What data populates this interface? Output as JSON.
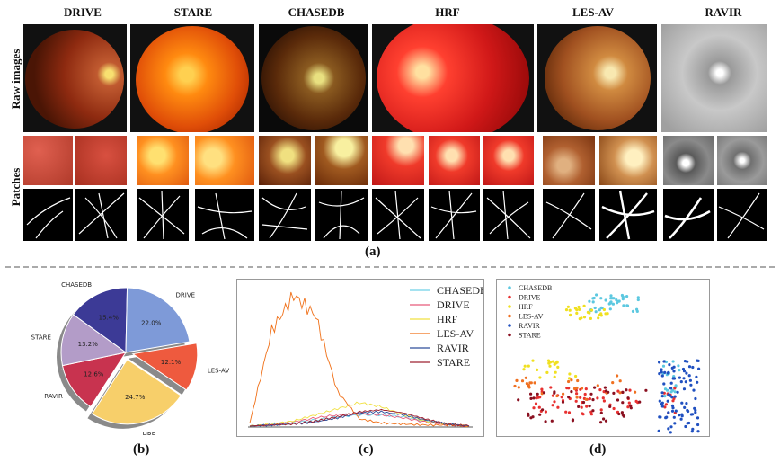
{
  "panel_a": {
    "columns": [
      "DRIVE",
      "STARE",
      "CHASEDB",
      "HRF",
      "LES-AV",
      "RAVIR"
    ],
    "row_labels": [
      "Raw images",
      "Patches"
    ],
    "caption": "(a)"
  },
  "captions": {
    "b": "(b)",
    "c": "(c)",
    "d": "(d)"
  },
  "chart_data": [
    {
      "type": "pie",
      "panel": "b",
      "labels": [
        "HRF",
        "RAVIR",
        "STARE",
        "CHASEDB",
        "DRIVE",
        "LES-AV"
      ],
      "values": [
        24.7,
        12.6,
        13.2,
        15.4,
        22.0,
        12.1
      ],
      "value_labels": [
        "24.7%",
        "12.6%",
        "13.2%",
        "15.4%",
        "22.0%",
        "12.1%"
      ],
      "colors": {
        "HRF": "#f7cf6a",
        "RAVIR": "#c8334f",
        "STARE": "#b39cc8",
        "CHASEDB": "#3c3a96",
        "DRIVE": "#7e9ad8",
        "LES-AV": "#ee5a3e"
      },
      "exploded": [
        "HRF",
        "LES-AV"
      ]
    },
    {
      "type": "line",
      "panel": "c",
      "title": "",
      "xlabel": "",
      "ylabel": "",
      "legend_position": "top-right",
      "x": [
        0,
        10,
        20,
        30,
        40,
        50,
        60,
        70,
        80,
        90,
        100
      ],
      "series": [
        {
          "name": "CHASEDB",
          "color": "#6fd0e8",
          "values": [
            1,
            2,
            4,
            7,
            10,
            12,
            12,
            10,
            6,
            3,
            1
          ]
        },
        {
          "name": "DRIVE",
          "color": "#e85a7a",
          "values": [
            1,
            2,
            5,
            9,
            12,
            13,
            12,
            9,
            5,
            2,
            1
          ]
        },
        {
          "name": "HRF",
          "color": "#f0e040",
          "values": [
            1,
            3,
            6,
            12,
            18,
            24,
            20,
            12,
            6,
            3,
            1
          ]
        },
        {
          "name": "LES-AV",
          "color": "#f07018",
          "values": [
            4,
            95,
            130,
            110,
            35,
            8,
            4,
            3,
            2,
            2,
            1
          ]
        },
        {
          "name": "RAVIR",
          "color": "#2e4e9a",
          "values": [
            1,
            2,
            3,
            5,
            9,
            14,
            15,
            12,
            7,
            3,
            1
          ]
        },
        {
          "name": "STARE",
          "color": "#9e2030",
          "values": [
            1,
            2,
            3,
            6,
            10,
            15,
            17,
            14,
            8,
            3,
            1
          ]
        }
      ]
    },
    {
      "type": "scatter",
      "panel": "d",
      "legend_position": "top-left",
      "series": [
        {
          "name": "CHASEDB",
          "color": "#5cc8e0"
        },
        {
          "name": "DRIVE",
          "color": "#e83030"
        },
        {
          "name": "HRF",
          "color": "#f0e020"
        },
        {
          "name": "LES-AV",
          "color": "#f07020"
        },
        {
          "name": "RAVIR",
          "color": "#2050c0"
        },
        {
          "name": "STARE",
          "color": "#8a1020"
        }
      ]
    }
  ]
}
